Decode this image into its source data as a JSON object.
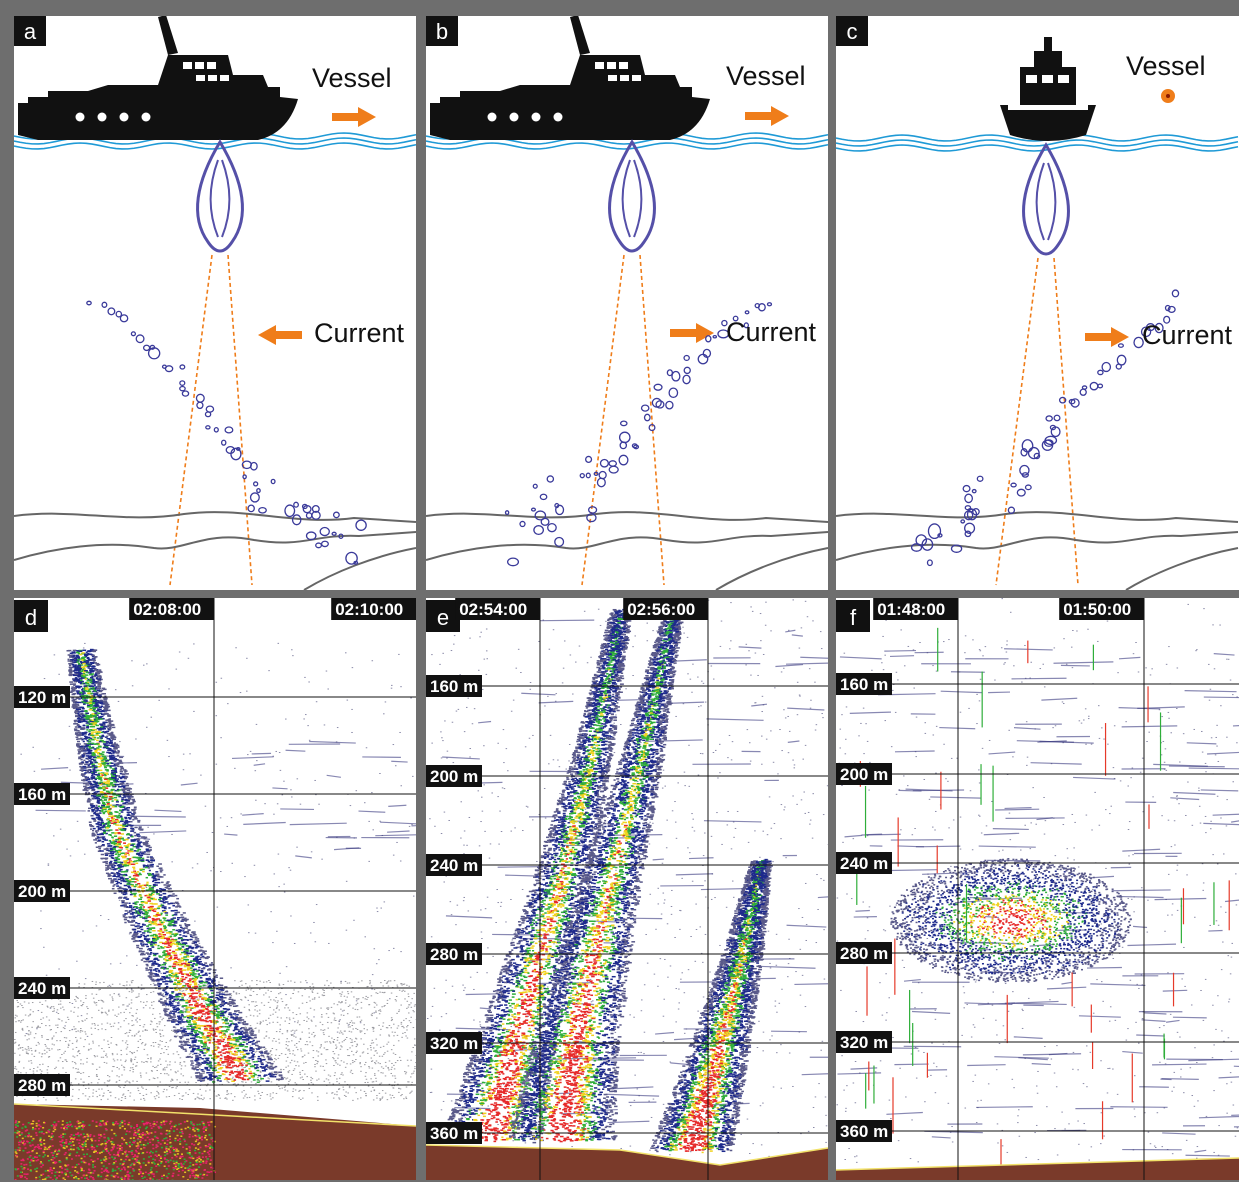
{
  "panels_top": [
    {
      "letter": "a",
      "vessel_label": "Vessel",
      "current_label": "Current",
      "vessel_dir": "right",
      "current_dir": "left"
    },
    {
      "letter": "b",
      "vessel_label": "Vessel",
      "current_label": "Current",
      "vessel_dir": "right",
      "current_dir": "right"
    },
    {
      "letter": "c",
      "vessel_label": "Vessel",
      "current_label": "Current",
      "vessel_dir": "out-of-page",
      "current_dir": "right"
    }
  ],
  "panels_bottom": [
    {
      "letter": "d",
      "times": [
        "02:08:00",
        "02:10:00"
      ],
      "depths": [
        "120 m",
        "160 m",
        "200 m",
        "240 m",
        "280 m"
      ]
    },
    {
      "letter": "e",
      "times": [
        "02:54:00",
        "02:56:00"
      ],
      "depths": [
        "160 m",
        "200 m",
        "240 m",
        "280 m",
        "320 m",
        "360 m"
      ]
    },
    {
      "letter": "f",
      "times": [
        "01:48:00",
        "01:50:00"
      ],
      "depths": [
        "160 m",
        "200 m",
        "240 m",
        "280 m",
        "320 m",
        "360 m"
      ]
    }
  ],
  "colors": {
    "arrow": "#ef7d1a",
    "bubble": "#3a3a9a",
    "beam": "#5550a8",
    "water": "#1f9ad6",
    "seabed": "#7a3a2a",
    "echo_low": "#1e2a8c",
    "echo_mid": "#2fae3a",
    "echo_high": "#e62a2a"
  }
}
